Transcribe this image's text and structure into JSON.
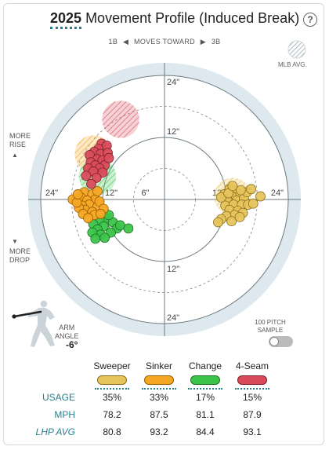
{
  "header": {
    "year": "2025",
    "title": "Movement Profile (Induced Break)",
    "help_glyph": "?"
  },
  "direction": {
    "left": "1B",
    "middle": "MOVES TOWARD",
    "right": "3B"
  },
  "side_labels": {
    "more_rise_1": "MORE",
    "more_rise_2": "RISE",
    "more_drop_1": "MORE",
    "more_drop_2": "DROP",
    "up_arrow": "▲",
    "down_arrow": "▼"
  },
  "mlb_avg_label": "MLB AVG.",
  "arm_angle": {
    "label_1": "ARM",
    "label_2": "ANGLE",
    "value": "-6°"
  },
  "sample": {
    "label_1": "100 PITCH",
    "label_2": "SAMPLE",
    "enabled": false
  },
  "pitches": [
    {
      "name": "Sweeper",
      "usage": "35%",
      "mph": "78.2",
      "lhp_avg": "80.8",
      "color": "#e6c45c",
      "border": "#8a6d1a"
    },
    {
      "name": "Sinker",
      "usage": "33%",
      "mph": "87.5",
      "lhp_avg": "93.2",
      "color": "#f5a623",
      "border": "#9a5b00"
    },
    {
      "name": "Change",
      "usage": "17%",
      "mph": "81.1",
      "lhp_avg": "84.4",
      "color": "#3cc34a",
      "border": "#1d6f25"
    },
    {
      "name": "4-Seam",
      "usage": "15%",
      "mph": "87.9",
      "lhp_avg": "93.1",
      "color": "#d94b5b",
      "border": "#7a1f2a"
    }
  ],
  "row_labels": {
    "usage": "USAGE",
    "mph": "MPH",
    "lhp_avg": "LHP AVG"
  },
  "chart_data": {
    "type": "scatter",
    "title": "",
    "xlabel": "",
    "ylabel": "",
    "xlim": [
      -24,
      24
    ],
    "ylim": [
      -24,
      24
    ],
    "rings": [
      6,
      12,
      24
    ],
    "tick_labels": {
      "top": "24\"",
      "upper": "12\"",
      "lower": "12\"",
      "bottom": "24\"",
      "left_outer": "24\"",
      "left_inner": "12\"",
      "right_inner": "12\"",
      "right_outer": "24\"",
      "center": "6\""
    },
    "mlb_avg": [
      {
        "pitch": "4-Seam",
        "x": -8.5,
        "y": 15.5,
        "r": 3.6
      },
      {
        "pitch": "Sinker",
        "x": -13.8,
        "y": 8.8,
        "r": 3.6
      },
      {
        "pitch": "Change",
        "x": -13.0,
        "y": 4.5,
        "r": 3.6
      },
      {
        "pitch": "Sweeper",
        "x": 13.2,
        "y": 0.6,
        "r": 3.6
      }
    ],
    "series": [
      {
        "name": "4-Seam",
        "points": [
          [
            -12.2,
            10.8
          ],
          [
            -11.2,
            10.4
          ],
          [
            -12.8,
            9.8
          ],
          [
            -13.6,
            9.2
          ],
          [
            -12.4,
            8.8
          ],
          [
            -11.0,
            9.0
          ],
          [
            -14.5,
            8.6
          ],
          [
            -13.0,
            7.8
          ],
          [
            -12.0,
            7.6
          ],
          [
            -14.3,
            7.2
          ],
          [
            -11.6,
            6.6
          ],
          [
            -13.4,
            6.6
          ],
          [
            -12.6,
            6.0
          ],
          [
            -14.8,
            6.0
          ],
          [
            -13.8,
            5.4
          ],
          [
            -12.0,
            5.2
          ],
          [
            -10.8,
            8.0
          ],
          [
            -15.2,
            4.6
          ],
          [
            -13.2,
            4.2
          ],
          [
            -14.2,
            3.0
          ]
        ]
      },
      {
        "name": "Sinker",
        "points": [
          [
            -15.6,
            1.4
          ],
          [
            -14.0,
            1.0
          ],
          [
            -16.2,
            0.4
          ],
          [
            -13.4,
            0.0
          ],
          [
            -15.0,
            -0.2
          ],
          [
            -17.8,
            0.0
          ],
          [
            -14.6,
            -1.0
          ],
          [
            -16.0,
            -1.2
          ],
          [
            -13.0,
            -1.4
          ],
          [
            -15.4,
            -2.0
          ],
          [
            -14.0,
            -2.4
          ],
          [
            -16.6,
            -1.6
          ],
          [
            -12.6,
            -0.4
          ],
          [
            -11.8,
            -1.8
          ],
          [
            -13.6,
            -3.0
          ],
          [
            -15.8,
            -2.8
          ],
          [
            -14.8,
            -3.6
          ],
          [
            -12.4,
            -2.8
          ],
          [
            -17.0,
            -0.6
          ],
          [
            -13.0,
            1.6
          ],
          [
            -16.8,
            1.0
          ]
        ]
      },
      {
        "name": "Change",
        "points": [
          [
            -11.4,
            -3.6
          ],
          [
            -12.6,
            -4.0
          ],
          [
            -10.0,
            -4.4
          ],
          [
            -13.8,
            -4.8
          ],
          [
            -11.8,
            -5.2
          ],
          [
            -9.2,
            -5.6
          ],
          [
            -13.0,
            -5.8
          ],
          [
            -10.4,
            -6.4
          ],
          [
            -12.4,
            -6.8
          ],
          [
            -14.0,
            -6.4
          ],
          [
            -11.6,
            -7.4
          ],
          [
            -8.6,
            -5.0
          ],
          [
            -7.0,
            -5.6
          ],
          [
            -13.4,
            -7.6
          ],
          [
            -10.8,
            -3.0
          ]
        ]
      },
      {
        "name": "Sweeper",
        "points": [
          [
            12.6,
            2.0
          ],
          [
            13.8,
            1.6
          ],
          [
            11.6,
            1.0
          ],
          [
            14.6,
            0.8
          ],
          [
            13.0,
            0.6
          ],
          [
            12.2,
            -0.2
          ],
          [
            14.0,
            -0.2
          ],
          [
            15.4,
            0.2
          ],
          [
            16.0,
            1.4
          ],
          [
            11.8,
            -1.2
          ],
          [
            13.4,
            -1.0
          ],
          [
            15.0,
            -1.0
          ],
          [
            12.6,
            -2.0
          ],
          [
            14.2,
            -2.2
          ],
          [
            16.2,
            -1.0
          ],
          [
            13.6,
            -3.0
          ],
          [
            15.2,
            -2.6
          ],
          [
            11.0,
            0.4
          ],
          [
            12.0,
            -3.2
          ],
          [
            17.2,
            -0.8
          ],
          [
            13.0,
            -4.2
          ],
          [
            11.0,
            -3.8
          ],
          [
            10.4,
            -4.4
          ],
          [
            14.6,
            -3.4
          ],
          [
            18.6,
            0.6
          ],
          [
            12.4,
            1.2
          ],
          [
            14.8,
            1.8
          ],
          [
            16.8,
            2.0
          ],
          [
            13.2,
            2.6
          ]
        ]
      }
    ]
  }
}
